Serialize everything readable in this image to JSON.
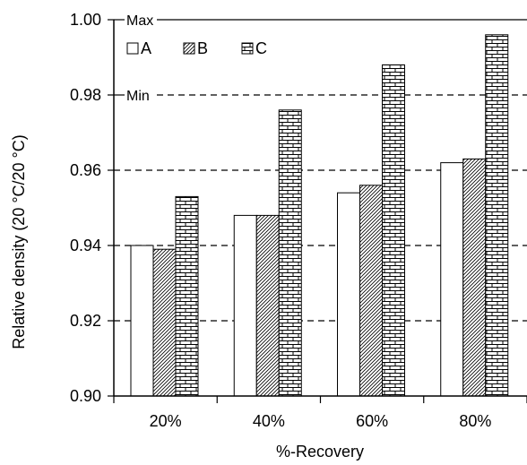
{
  "chart_data": {
    "type": "bar",
    "title": "",
    "xlabel": "%-Recovery",
    "ylabel": "Relative density (20 °C/20 °C)",
    "categories": [
      "20%",
      "40%",
      "60%",
      "80%"
    ],
    "series": [
      {
        "name": "A",
        "values": [
          0.94,
          0.948,
          0.954,
          0.962
        ],
        "pattern": "none"
      },
      {
        "name": "B",
        "values": [
          0.939,
          0.948,
          0.956,
          0.963
        ],
        "pattern": "diagonal-hatch"
      },
      {
        "name": "C",
        "values": [
          0.953,
          0.976,
          0.988,
          0.996
        ],
        "pattern": "brick"
      }
    ],
    "ylim": [
      0.9,
      1.0
    ],
    "yticks": [
      "0.90",
      "0.92",
      "0.94",
      "0.96",
      "0.98",
      "1.00"
    ],
    "reference_lines": [
      {
        "label": "Max",
        "value": 1.0,
        "style": "solid"
      },
      {
        "label": "Min",
        "value": 0.98,
        "style": "dashed"
      }
    ],
    "gridlines": [
      0.92,
      0.94,
      0.96
    ],
    "grid": "dashed horizontal",
    "legend_position": "top-left",
    "colors": {
      "bar_fill": "#ffffff",
      "stroke": "#000000"
    }
  }
}
